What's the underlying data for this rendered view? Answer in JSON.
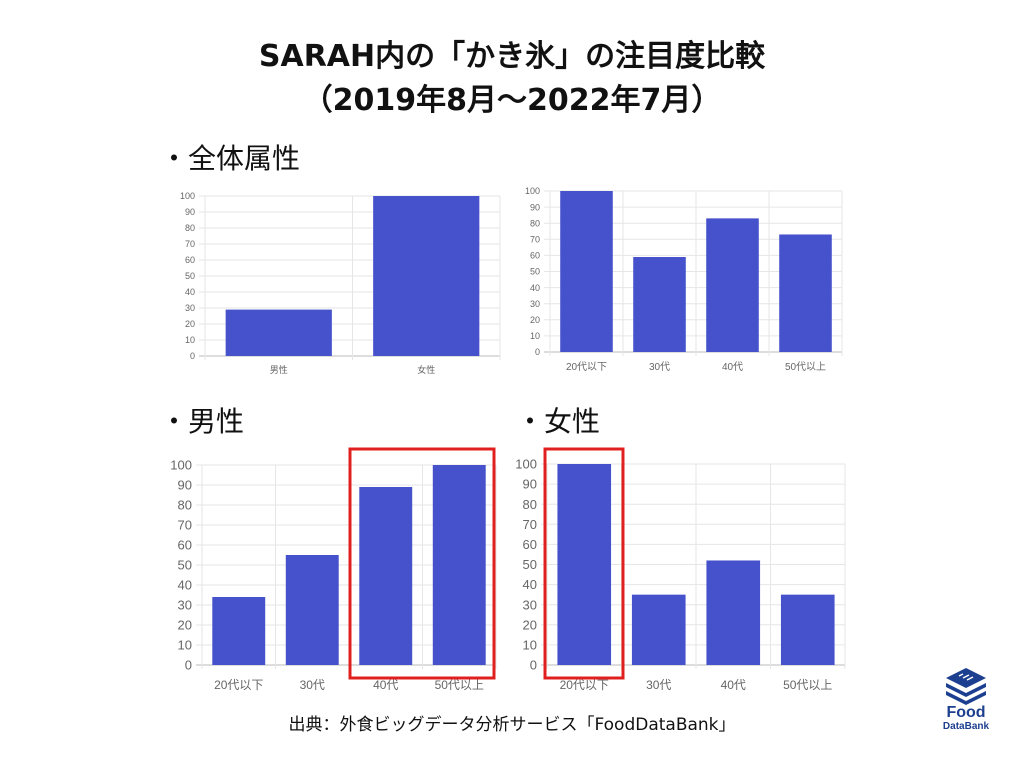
{
  "title": {
    "line1": "SARAH内の「かき氷」の注目度比較",
    "line2": "（2019年8月～2022年7月）"
  },
  "sections": {
    "overall": "・全体属性",
    "male": "・男性",
    "female": "・女性"
  },
  "source": "出典：外食ビッグデータ分析サービス「FoodDataBank」",
  "logo": {
    "line1": "Food",
    "line2": "DataBank",
    "color": "#1d3f8f"
  },
  "colors": {
    "bar": "#4552cc",
    "highlight": "#e0201f",
    "grid": "#e6e6e6"
  },
  "chart_data": [
    {
      "id": "overall-gender",
      "type": "bar",
      "categories": [
        "男性",
        "女性"
      ],
      "values": [
        29,
        100
      ],
      "ylim": [
        0,
        100
      ],
      "yticks": [
        0,
        10,
        20,
        30,
        40,
        50,
        60,
        70,
        80,
        90,
        100
      ],
      "grid": true
    },
    {
      "id": "overall-age",
      "type": "bar",
      "categories": [
        "20代以下",
        "30代",
        "40代",
        "50代以上"
      ],
      "values": [
        100,
        59,
        83,
        73
      ],
      "ylim": [
        0,
        100
      ],
      "yticks": [
        0,
        10,
        20,
        30,
        40,
        50,
        60,
        70,
        80,
        90,
        100
      ],
      "grid": true
    },
    {
      "id": "male-age",
      "type": "bar",
      "categories": [
        "20代以下",
        "30代",
        "40代",
        "50代以上"
      ],
      "values": [
        34,
        55,
        89,
        100
      ],
      "ylim": [
        0,
        100
      ],
      "yticks": [
        0,
        10,
        20,
        30,
        40,
        50,
        60,
        70,
        80,
        90,
        100
      ],
      "grid": true,
      "highlighted": [
        "40代",
        "50代以上"
      ]
    },
    {
      "id": "female-age",
      "type": "bar",
      "categories": [
        "20代以下",
        "30代",
        "40代",
        "50代以上"
      ],
      "values": [
        100,
        35,
        52,
        35
      ],
      "ylim": [
        0,
        100
      ],
      "yticks": [
        0,
        10,
        20,
        30,
        40,
        50,
        60,
        70,
        80,
        90,
        100
      ],
      "grid": true,
      "highlighted": [
        "20代以下"
      ]
    }
  ]
}
